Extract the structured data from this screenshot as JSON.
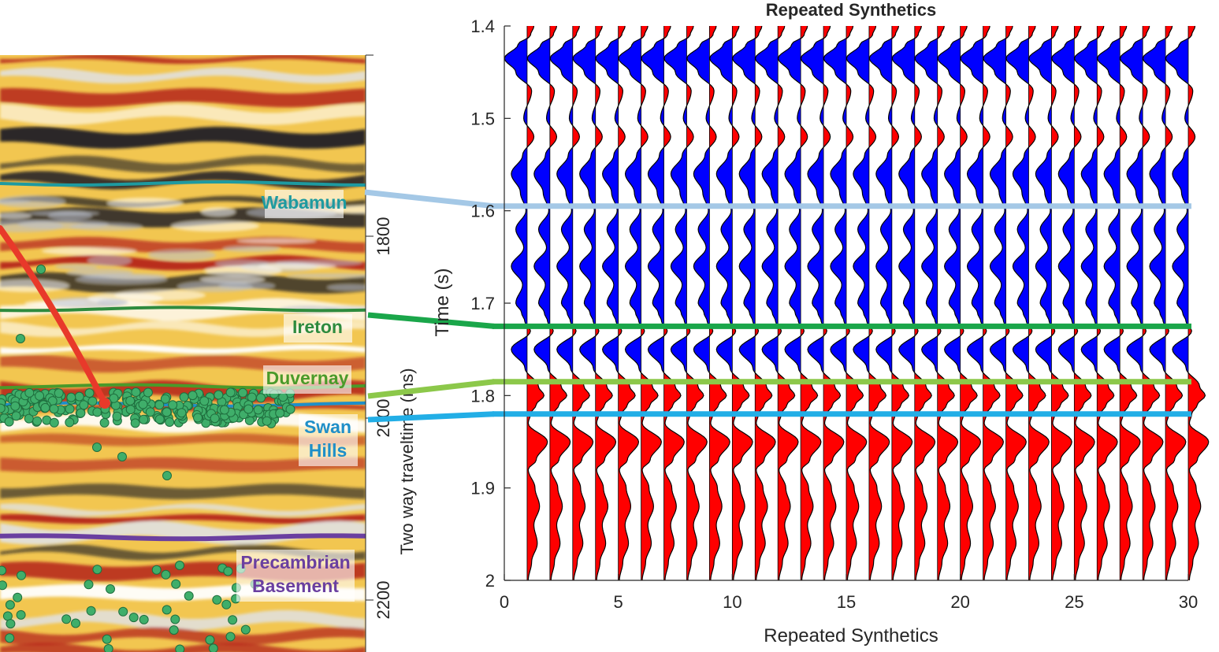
{
  "chart_data": [
    {
      "type": "heatmap",
      "ylabel": "Two way traveltime (ms)",
      "yticks": [
        1800,
        2000,
        2200
      ],
      "ylim": [
        1650,
        2250
      ],
      "horizons": [
        {
          "name": "Wabamun",
          "time_ms": 1742,
          "color": "#1e9aa0"
        },
        {
          "name": "Ireton",
          "time_ms": 1880,
          "color": "#2e8b3e"
        },
        {
          "name": "Duvernay",
          "time_ms": 1965,
          "color": "#4a9a2a"
        },
        {
          "name": "Swan Hills",
          "time_ms": 1985,
          "color": "#1f8fc8"
        },
        {
          "name": "Precambrian Basement",
          "time_ms": 2131,
          "color": "#6a3fa0"
        }
      ],
      "colors": {
        "peak": "#b3201a",
        "mid": "#f4c04a",
        "trough": "#1a1a24",
        "well": "#e8392a",
        "events": "#3fae6a"
      }
    },
    {
      "type": "line",
      "title": "Repeated Synthetics",
      "xlabel": "Repeated Synthetics",
      "ylabel": "Time (s)",
      "xlim": [
        0,
        30
      ],
      "ylim": [
        1.4,
        2.0
      ],
      "y_reversed": true,
      "xticks": [
        0,
        5,
        10,
        15,
        20,
        25,
        30
      ],
      "yticks": [
        1.4,
        1.5,
        1.6,
        1.7,
        1.8,
        1.9,
        2.0
      ],
      "trace_count": 30,
      "wiggle_scale": 0.55,
      "fill_colors": {
        "negative": "#0000ff",
        "positive": "#ff0000"
      },
      "horizon_lines": [
        {
          "name": "Wabamun",
          "time_s": 1.595,
          "color": "#a4c8e6"
        },
        {
          "name": "Ireton",
          "time_s": 1.725,
          "color": "#1aa64a"
        },
        {
          "name": "Duvernay",
          "time_s": 1.785,
          "color": "#8cc84a"
        },
        {
          "name": "Swan Hills",
          "time_s": 1.82,
          "color": "#22aee6"
        }
      ],
      "wavelet": {
        "t": [
          1.4,
          1.41,
          1.42,
          1.435,
          1.45,
          1.47,
          1.5,
          1.52,
          1.54,
          1.56,
          1.58,
          1.6,
          1.62,
          1.64,
          1.66,
          1.68,
          1.7,
          1.71,
          1.72,
          1.73,
          1.75,
          1.77,
          1.79,
          1.8,
          1.81,
          1.82,
          1.83,
          1.85,
          1.87,
          1.88,
          1.9,
          1.92,
          1.94,
          1.96,
          1.98,
          2.0
        ],
        "a": [
          0.3,
          0.15,
          -0.4,
          -1.0,
          -0.5,
          0.2,
          -0.15,
          0.3,
          -0.2,
          -0.7,
          -0.3,
          -0.05,
          -0.5,
          -0.15,
          -0.7,
          -0.2,
          -0.5,
          -0.25,
          -0.1,
          0.15,
          -0.7,
          -0.1,
          0.5,
          0.75,
          0.4,
          0.15,
          0.05,
          0.9,
          0.4,
          0.05,
          0.35,
          0.55,
          0.3,
          0.45,
          0.2,
          0.05
        ]
      }
    }
  ]
}
